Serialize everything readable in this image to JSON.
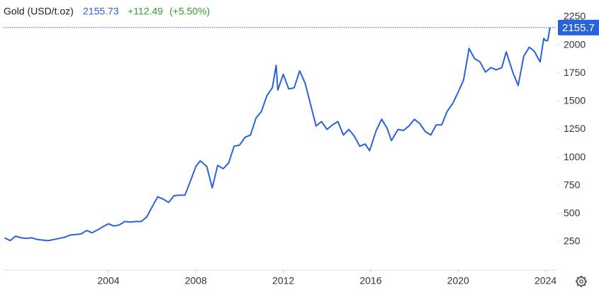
{
  "chart_data": {
    "type": "line",
    "title": "Gold (USD/t.oz)",
    "last": {
      "value": 2155.73,
      "label": "2155.73"
    },
    "change": "+112.49",
    "change_pct": "(+5.50%)",
    "last_box_label": "2155.7",
    "color": "#2a62d8",
    "grid": false,
    "xlim": [
      1999.2,
      2024.5
    ],
    "xticks": [
      2004,
      2008,
      2012,
      2016,
      2020,
      2024
    ],
    "ylim": [
      0,
      2290
    ],
    "yticks": [
      250,
      500,
      750,
      1000,
      1250,
      1500,
      1750,
      2000,
      2250
    ],
    "x": [
      1999.25,
      1999.5,
      1999.75,
      2000.0,
      2000.25,
      2000.5,
      2000.75,
      2001.0,
      2001.25,
      2001.5,
      2001.75,
      2002.0,
      2002.25,
      2002.5,
      2002.75,
      2003.0,
      2003.25,
      2003.5,
      2003.75,
      2004.0,
      2004.25,
      2004.5,
      2004.75,
      2005.0,
      2005.25,
      2005.5,
      2005.75,
      2006.0,
      2006.25,
      2006.5,
      2006.75,
      2007.0,
      2007.25,
      2007.5,
      2007.75,
      2008.0,
      2008.2,
      2008.5,
      2008.75,
      2009.0,
      2009.25,
      2009.5,
      2009.75,
      2010.0,
      2010.25,
      2010.5,
      2010.75,
      2011.0,
      2011.25,
      2011.5,
      2011.67,
      2011.75,
      2012.0,
      2012.25,
      2012.5,
      2012.75,
      2013.0,
      2013.25,
      2013.5,
      2013.75,
      2014.0,
      2014.25,
      2014.5,
      2014.75,
      2015.0,
      2015.25,
      2015.5,
      2015.75,
      2015.95,
      2016.25,
      2016.5,
      2016.75,
      2016.95,
      2017.25,
      2017.5,
      2017.75,
      2018.0,
      2018.25,
      2018.5,
      2018.75,
      2019.0,
      2019.25,
      2019.5,
      2019.75,
      2020.0,
      2020.25,
      2020.5,
      2020.75,
      2021.0,
      2021.25,
      2021.5,
      2021.75,
      2022.0,
      2022.2,
      2022.5,
      2022.75,
      2023.0,
      2023.25,
      2023.4,
      2023.5,
      2023.75,
      2023.92,
      2024.0,
      2024.1,
      2024.2
    ],
    "series": [
      {
        "name": "Gold",
        "color": "#2a62d8",
        "values": [
          285,
          260,
          300,
          285,
          280,
          285,
          270,
          265,
          260,
          270,
          280,
          290,
          310,
          315,
          320,
          350,
          330,
          355,
          385,
          410,
          390,
          400,
          430,
          425,
          430,
          430,
          470,
          560,
          650,
          630,
          600,
          660,
          665,
          665,
          790,
          920,
          970,
          920,
          730,
          930,
          900,
          950,
          1100,
          1110,
          1180,
          1200,
          1350,
          1410,
          1550,
          1620,
          1820,
          1600,
          1740,
          1610,
          1620,
          1770,
          1660,
          1470,
          1280,
          1320,
          1250,
          1290,
          1320,
          1200,
          1250,
          1190,
          1100,
          1120,
          1060,
          1240,
          1340,
          1260,
          1150,
          1250,
          1240,
          1280,
          1340,
          1300,
          1230,
          1200,
          1290,
          1290,
          1410,
          1480,
          1580,
          1690,
          1970,
          1880,
          1850,
          1760,
          1800,
          1780,
          1800,
          1940,
          1760,
          1640,
          1900,
          1980,
          1960,
          1940,
          1850,
          2060,
          2040,
          2040,
          2156
        ]
      }
    ]
  }
}
